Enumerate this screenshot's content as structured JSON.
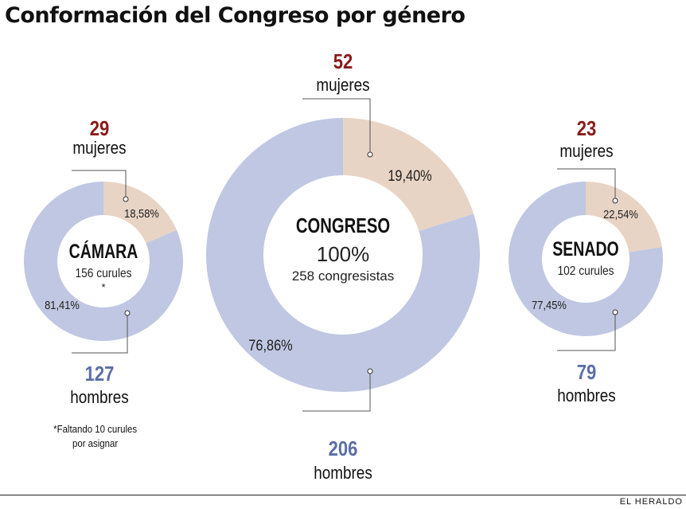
{
  "title": "Conformación del Congreso por género",
  "colors": {
    "mujeres": "#e8d4c5",
    "hombres": "#c0c7e2",
    "mujeres_count": "#8b1a1a",
    "hombres_count": "#5b6fa8"
  },
  "chart_data": [
    {
      "type": "pie",
      "id": "camara",
      "center_title": "CÁMARA",
      "center_subtitle": "156 curules",
      "center_mark": "*",
      "slices": [
        {
          "label": "mujeres",
          "count": "29",
          "percent": 18.58,
          "percent_label": "18,58%"
        },
        {
          "label": "hombres",
          "count": "127",
          "percent": 81.41,
          "percent_label": "81,41%"
        }
      ]
    },
    {
      "type": "pie",
      "id": "congreso",
      "center_title": "CONGRESO",
      "center_value": "100%",
      "center_subtitle": "258 congresistas",
      "slices": [
        {
          "label": "mujeres",
          "count": "52",
          "percent": 19.4,
          "percent_label": "19,40%"
        },
        {
          "label": "hombres",
          "count": "206",
          "percent": 76.86,
          "percent_label": "76,86%"
        }
      ]
    },
    {
      "type": "pie",
      "id": "senado",
      "center_title": "SENADO",
      "center_subtitle": "102 curules",
      "slices": [
        {
          "label": "mujeres",
          "count": "23",
          "percent": 22.54,
          "percent_label": "22,54%"
        },
        {
          "label": "hombres",
          "count": "79",
          "percent": 77.45,
          "percent_label": "77,45%"
        }
      ]
    }
  ],
  "footnote_line1": "*Faltando 10 curules",
  "footnote_line2": "por asignar",
  "credit": "EL HERALDO"
}
